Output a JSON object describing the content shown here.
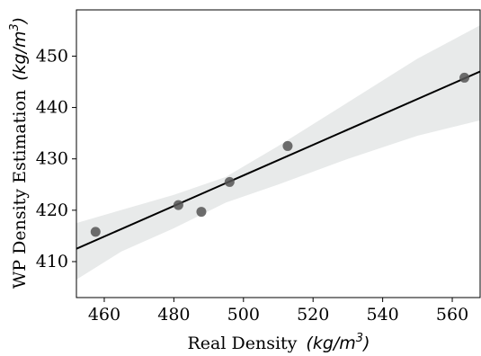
{
  "chart_data": {
    "type": "scatter",
    "xlabel_text": "Real Density",
    "xlabel_unit": "(kg/m",
    "xlabel_exp": "3",
    "xlabel_close": ")",
    "ylabel_text": "WP Density Estimation",
    "ylabel_unit": "(kg/m",
    "ylabel_exp": "3",
    "ylabel_close": ")",
    "xlim": [
      452,
      568
    ],
    "ylim": [
      403,
      459
    ],
    "xticks": [
      460,
      480,
      500,
      520,
      540,
      560
    ],
    "yticks": [
      410,
      420,
      430,
      440,
      450
    ],
    "points": [
      {
        "x": 457.5,
        "y": 415.8
      },
      {
        "x": 481.3,
        "y": 421.0
      },
      {
        "x": 487.9,
        "y": 419.7
      },
      {
        "x": 496.0,
        "y": 425.5
      },
      {
        "x": 512.7,
        "y": 432.5
      },
      {
        "x": 563.5,
        "y": 445.8
      }
    ],
    "regression": {
      "x0": 452,
      "y0": 412.5,
      "x1": 568,
      "y1": 447.0
    },
    "confidence_band": {
      "upper": [
        [
          452,
          417.5
        ],
        [
          480,
          423.0
        ],
        [
          495,
          426.5
        ],
        [
          510,
          432.5
        ],
        [
          530,
          441.0
        ],
        [
          550,
          449.5
        ],
        [
          568,
          456.0
        ]
      ],
      "lower": [
        [
          568,
          437.5
        ],
        [
          550,
          434.5
        ],
        [
          530,
          430.0
        ],
        [
          510,
          425.0
        ],
        [
          495,
          421.5
        ],
        [
          480,
          416.5
        ],
        [
          465,
          412.0
        ],
        [
          452,
          406.5
        ]
      ]
    },
    "colors": {
      "point": "#555555",
      "line": "#000000",
      "band": "#e8eaea",
      "axis": "#000000"
    },
    "grid": false
  }
}
